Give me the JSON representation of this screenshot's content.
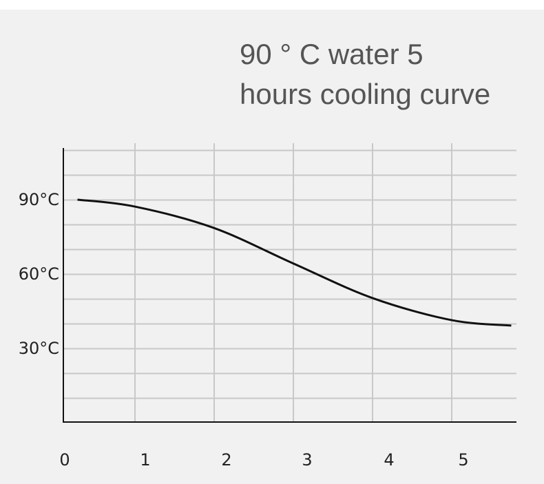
{
  "chart_data": {
    "type": "line",
    "title_lines": [
      "90 ° C water 5",
      "hours cooling curve"
    ],
    "xlabel": "",
    "ylabel": "",
    "x_tick_labels": [
      "0",
      "1",
      "2",
      "3",
      "4",
      "5"
    ],
    "y_tick_labels": [
      {
        "value": 90,
        "label": "90°C"
      },
      {
        "value": 60,
        "label": "60°C"
      },
      {
        "value": 30,
        "label": "30°C"
      }
    ],
    "xlim": [
      0,
      5.8
    ],
    "ylim": [
      0,
      110
    ],
    "grid": true,
    "series": [
      {
        "name": "cooling curve",
        "color": "#111111",
        "x": [
          0.16,
          0.88,
          1.87,
          2.87,
          3.86,
          4.85,
          5.6
        ],
        "y": [
          90,
          87.2,
          78.6,
          64.2,
          50.3,
          41.4,
          39.2
        ]
      }
    ]
  }
}
